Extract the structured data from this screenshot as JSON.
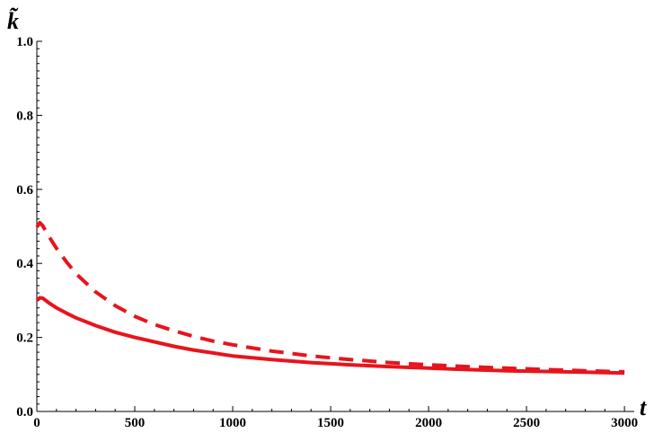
{
  "chart_data": {
    "type": "line",
    "title": "",
    "xlabel": "t",
    "ylabel": "k̃",
    "xlim": [
      0,
      3050
    ],
    "ylim": [
      0,
      1.0
    ],
    "x_ticks": [
      0,
      500,
      1000,
      1500,
      2000,
      2500,
      3000
    ],
    "x_tick_labels": [
      "0",
      "500",
      "1000",
      "1500",
      "2000",
      "2500",
      "3000"
    ],
    "y_ticks": [
      0.0,
      0.2,
      0.4,
      0.6,
      0.8,
      1.0
    ],
    "y_tick_labels": [
      "0.0",
      "0.2",
      "0.4",
      "0.6",
      "0.8",
      "1.0"
    ],
    "grid": false,
    "legend": "none",
    "series": [
      {
        "style": "solid",
        "color": "#e8141c",
        "x": [
          0,
          15,
          30,
          60,
          100,
          150,
          200,
          300,
          400,
          500,
          600,
          700,
          800,
          900,
          1000,
          1200,
          1400,
          1600,
          1800,
          2000,
          2200,
          2400,
          2600,
          2800,
          3000
        ],
        "y": [
          0.3,
          0.307,
          0.306,
          0.294,
          0.28,
          0.266,
          0.253,
          0.232,
          0.214,
          0.2,
          0.188,
          0.176,
          0.166,
          0.158,
          0.15,
          0.14,
          0.132,
          0.126,
          0.121,
          0.117,
          0.113,
          0.11,
          0.108,
          0.106,
          0.104
        ]
      },
      {
        "style": "dashed",
        "color": "#e8141c",
        "x": [
          0,
          15,
          30,
          60,
          100,
          150,
          200,
          300,
          400,
          500,
          600,
          700,
          800,
          900,
          1000,
          1200,
          1400,
          1600,
          1800,
          2000,
          2200,
          2400,
          2600,
          2800,
          3000
        ],
        "y": [
          0.498,
          0.51,
          0.502,
          0.474,
          0.441,
          0.405,
          0.372,
          0.323,
          0.286,
          0.257,
          0.235,
          0.218,
          0.203,
          0.19,
          0.18,
          0.163,
          0.15,
          0.14,
          0.132,
          0.126,
          0.121,
          0.117,
          0.113,
          0.11,
          0.107
        ]
      }
    ]
  }
}
